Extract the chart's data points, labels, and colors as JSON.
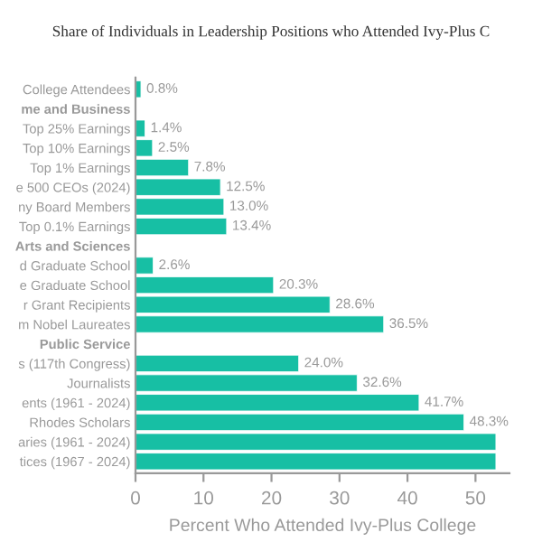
{
  "chart_data": {
    "type": "bar",
    "orientation": "horizontal",
    "title": "Share of Individuals in Leadership Positions who Attended Ivy-Plus C",
    "xlabel": "Percent Who Attended Ivy-Plus College",
    "categories": [
      "College Attendees",
      "me and Business",
      "Top 25% Earnings",
      "Top 10% Earnings",
      "Top 1% Earnings",
      "e 500 CEOs (2024)",
      "ny Board Members",
      "Top 0.1% Earnings",
      "Arts and Sciences",
      "d Graduate School",
      "e Graduate School",
      "r Grant Recipients",
      "m Nobel Laureates",
      "Public Service",
      "s (117th Congress)",
      "Journalists",
      "ents (1961 - 2024)",
      "Rhodes Scholars",
      "aries (1961 - 2024)",
      "tices (1967 - 2024)"
    ],
    "values": [
      0.8,
      null,
      1.4,
      2.5,
      7.8,
      12.5,
      13.0,
      13.4,
      null,
      2.6,
      20.3,
      28.6,
      36.5,
      null,
      24.0,
      32.6,
      41.7,
      48.3,
      53,
      53
    ],
    "value_labels": [
      "0.8%",
      null,
      "1.4%",
      "2.5%",
      "7.8%",
      "12.5%",
      "13.0%",
      "13.4%",
      null,
      "2.6%",
      "20.3%",
      "28.6%",
      "36.5%",
      null,
      "24.0%",
      "32.6%",
      "41.7%",
      "48.3%",
      null,
      null
    ],
    "color": "#17bfa4",
    "xlim": [
      0,
      55
    ],
    "xticks": [
      0,
      10,
      20,
      30,
      40,
      50
    ],
    "grid": false
  }
}
